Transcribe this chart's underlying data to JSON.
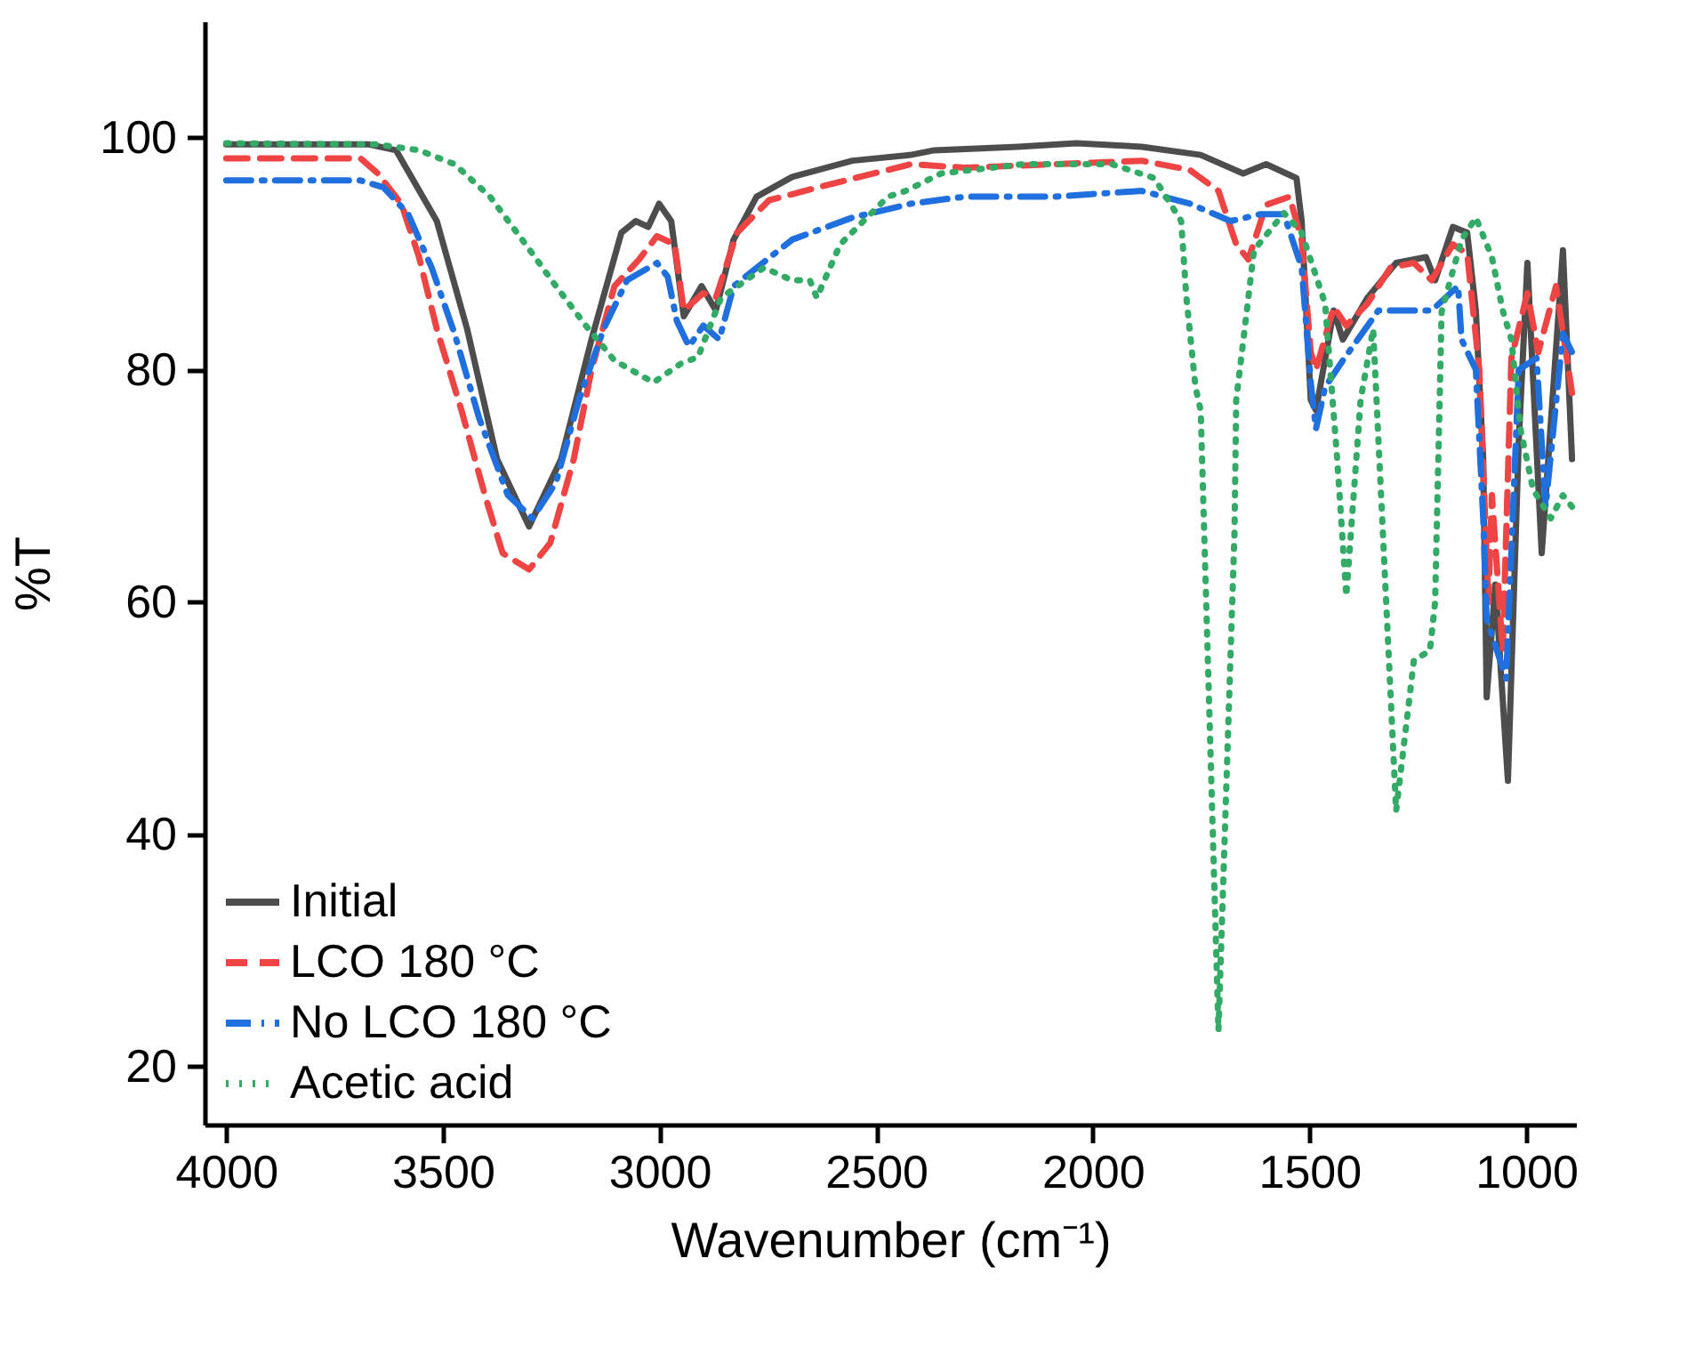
{
  "chart_data": {
    "type": "line",
    "xlabel": "Wavenumber (cm⁻¹)",
    "ylabel": "%T",
    "xlim": [
      4050,
      885
    ],
    "xticks": [
      4000,
      3500,
      3000,
      2500,
      2000,
      1500,
      1000
    ],
    "ylim": [
      15,
      110
    ],
    "yticks": [
      20,
      40,
      60,
      80,
      100
    ],
    "grid": false,
    "legend": "bottom left",
    "marker": "none",
    "series": [
      {
        "name": "Initial",
        "color": "#4d4d4d",
        "line_style": "solid",
        "x": [
          4000,
          3670,
          3608,
          3514,
          3444,
          3375,
          3301,
          3227,
          3157,
          3088,
          3055,
          3026,
          3001,
          2973,
          2944,
          2903,
          2870,
          2829,
          2776,
          2694,
          2555,
          2420,
          2366,
          2173,
          2038,
          1887,
          1751,
          1653,
          1600,
          1530,
          1518,
          1497,
          1485,
          1444,
          1423,
          1366,
          1300,
          1231,
          1210,
          1169,
          1136,
          1116,
          1099,
          1091,
          1071,
          1042,
          1017,
          997,
          964,
          915,
          894
        ],
        "values": [
          99.4,
          99.4,
          98.9,
          92.8,
          83.5,
          72.3,
          66.5,
          72.3,
          82.6,
          91.8,
          92.8,
          92.3,
          94.3,
          92.8,
          84.6,
          87.2,
          85.1,
          91.2,
          94.9,
          96.6,
          98,
          98.5,
          98.9,
          99.2,
          99.5,
          99.2,
          98.5,
          96.9,
          97.7,
          96.5,
          92.8,
          77.4,
          76.5,
          85.1,
          82.6,
          86.2,
          89.2,
          89.7,
          87.7,
          92.3,
          91.8,
          85.1,
          72.3,
          51.8,
          61.5,
          44.6,
          73.8,
          89.2,
          64.2,
          90.3,
          72.3
        ]
      },
      {
        "name": "LCO 180 °C",
        "color": "#ee4444",
        "line_style": "dashed",
        "x": [
          4000,
          3690,
          3650,
          3596,
          3555,
          3514,
          3457,
          3403,
          3362,
          3301,
          3252,
          3198,
          3157,
          3104,
          3047,
          3006,
          2965,
          2944,
          2899,
          2870,
          2821,
          2747,
          2624,
          2420,
          2296,
          2091,
          1887,
          1776,
          1710,
          1669,
          1641,
          1600,
          1546,
          1518,
          1497,
          1485,
          1444,
          1415,
          1366,
          1313,
          1259,
          1218,
          1169,
          1136,
          1108,
          1087,
          1079,
          1054,
          1034,
          997,
          972,
          931,
          894
        ],
        "values": [
          98.2,
          98.2,
          96.9,
          94.3,
          89.7,
          83.5,
          76.5,
          69.2,
          64.2,
          62.8,
          65.1,
          72.3,
          80,
          87.2,
          89.5,
          91.5,
          90.8,
          85.1,
          86.6,
          86.2,
          91.8,
          94.6,
          95.8,
          97.7,
          97.4,
          97.7,
          98,
          97.2,
          95.4,
          90.8,
          89.5,
          94.2,
          94.9,
          91.2,
          81.5,
          80,
          85.4,
          83.8,
          85.7,
          88.8,
          89.2,
          87.7,
          90.8,
          90,
          80,
          60,
          69.2,
          55.8,
          81,
          86.6,
          81.5,
          87.2,
          78
        ]
      },
      {
        "name": "No LCO 180 °C",
        "color": "#1f6fde",
        "line_style": "dashdot",
        "x": [
          4000,
          3690,
          3637,
          3580,
          3526,
          3473,
          3416,
          3350,
          3293,
          3239,
          3186,
          3129,
          3075,
          3006,
          2981,
          2960,
          2932,
          2899,
          2862,
          2829,
          2694,
          2555,
          2420,
          2296,
          2091,
          1887,
          1776,
          1682,
          1612,
          1559,
          1518,
          1497,
          1485,
          1464,
          1423,
          1341,
          1218,
          1157,
          1149,
          1116,
          1099,
          1091,
          1046,
          1017,
          976,
          955,
          915,
          894
        ],
        "values": [
          96.3,
          96.3,
          95.7,
          93.4,
          88.8,
          83.1,
          75.8,
          69.2,
          67.2,
          70.3,
          77.4,
          83.5,
          87.7,
          89.2,
          88,
          84.2,
          82,
          83.8,
          82.6,
          87.2,
          91.2,
          93.1,
          94.3,
          94.9,
          94.9,
          95.4,
          94.3,
          92.8,
          93.4,
          93.4,
          88.8,
          78.9,
          74.9,
          78.5,
          80.8,
          85.1,
          85.1,
          87.2,
          82.6,
          80,
          67.2,
          58.5,
          53.4,
          80,
          81,
          68.2,
          83.1,
          81.5
        ]
      },
      {
        "name": "Acetic acid",
        "color": "#33aa66",
        "line_style": "dotted",
        "x": [
          4000,
          3650,
          3555,
          3473,
          3391,
          3309,
          3239,
          3170,
          3104,
          3014,
          2952,
          2911,
          2858,
          2759,
          2694,
          2653,
          2637,
          2583,
          2473,
          2432,
          2350,
          2161,
          1956,
          1858,
          1796,
          1784,
          1763,
          1751,
          1710,
          1673,
          1669,
          1628,
          1559,
          1518,
          1464,
          1436,
          1415,
          1382,
          1353,
          1300,
          1259,
          1222,
          1210,
          1195,
          1149,
          1116,
          1079,
          1054,
          1034,
          1013,
          984,
          943,
          915,
          894
        ],
        "values": [
          99.5,
          99.4,
          98.9,
          97.7,
          94.9,
          90.8,
          87.2,
          83.8,
          80.8,
          78.9,
          80.5,
          81.1,
          86.2,
          88.8,
          87.7,
          87.7,
          86.2,
          90.8,
          94.9,
          95.4,
          96.9,
          97.7,
          97.7,
          96.5,
          92.8,
          86.2,
          78.5,
          76.5,
          23.1,
          66,
          77.4,
          90.3,
          93.5,
          91.8,
          85.7,
          72.3,
          60.5,
          77.4,
          83.5,
          42,
          55,
          55.8,
          60,
          85,
          91.2,
          93.1,
          89.7,
          85.1,
          82.6,
          74.9,
          69.7,
          67.2,
          69.2,
          68.2
        ]
      }
    ]
  }
}
